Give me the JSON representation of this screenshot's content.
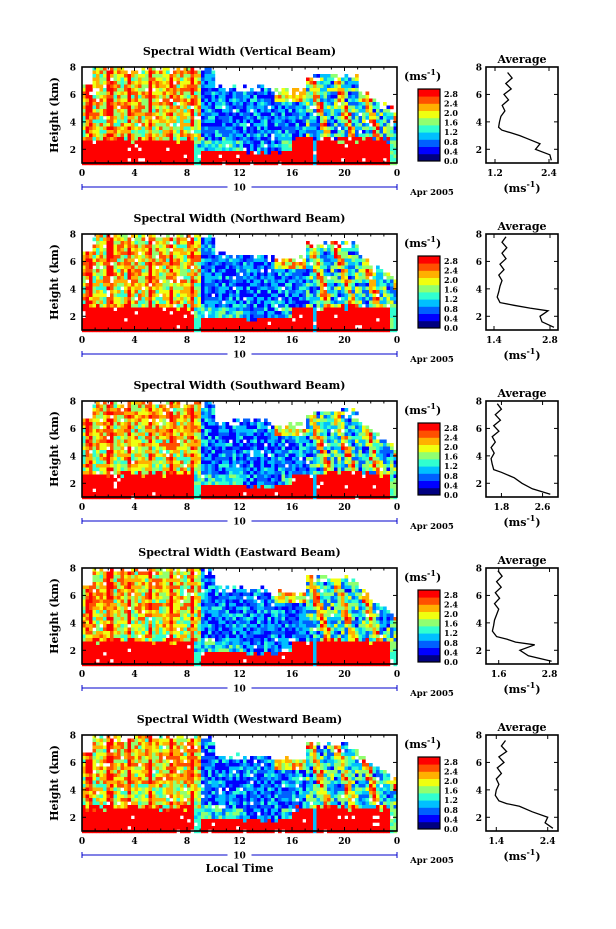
{
  "colors": {
    "colormap": [
      "#000080",
      "#0000ff",
      "#0060ff",
      "#00c0ff",
      "#30ffd0",
      "#90ff70",
      "#f0ff10",
      "#ffb000",
      "#ff5000",
      "#ff0000"
    ]
  },
  "chart_data": [
    {
      "type": "heatmap",
      "title": "Spectral Width (Vertical Beam)",
      "ylabel": "Height (km)",
      "x_ticks": [
        "0",
        "4",
        "8",
        "12",
        "16",
        "20",
        "0"
      ],
      "day_label": "10",
      "date_label": "Apr 2005",
      "xlim": [
        0,
        24
      ],
      "ylim": [
        1,
        8
      ],
      "y_ticks": [
        "2",
        "4",
        "6",
        "8"
      ],
      "colorbar": {
        "unit": "(ms-1)",
        "unit_base": "(ms",
        "unit_exp": "-1",
        "unit_close": ")",
        "ticks": [
          "0.0",
          "0.4",
          "0.8",
          "1.2",
          "1.6",
          "2.0",
          "2.4",
          "2.8"
        ],
        "range": [
          0,
          3.0
        ]
      },
      "profile": {
        "title": "Average",
        "xlabel_base": "(ms",
        "xlabel_exp": "-1",
        "xlabel_close": ")",
        "x_ticks": [
          "1.2",
          "2.4"
        ],
        "xlim": [
          1.0,
          2.6
        ],
        "ylim": [
          1,
          8
        ],
        "y_ticks": [
          "2",
          "4",
          "6",
          "8"
        ],
        "height": [
          1.2,
          1.6,
          2.0,
          2.4,
          2.8,
          3.0,
          3.2,
          3.4,
          3.6,
          4.0,
          4.4,
          4.8,
          5.2,
          5.6,
          6.0,
          6.4,
          6.8,
          7.2,
          7.6
        ],
        "width": [
          2.45,
          2.42,
          2.1,
          2.2,
          1.9,
          1.75,
          1.55,
          1.35,
          1.28,
          1.3,
          1.33,
          1.42,
          1.36,
          1.5,
          1.4,
          1.56,
          1.44,
          1.58,
          1.48
        ]
      }
    },
    {
      "type": "heatmap",
      "title": "Spectral Width (Northward Beam)",
      "ylabel": "Height (km)",
      "x_ticks": [
        "0",
        "4",
        "8",
        "12",
        "16",
        "20",
        "0"
      ],
      "day_label": "10",
      "date_label": "Apr 2005",
      "xlim": [
        0,
        24
      ],
      "ylim": [
        1,
        8
      ],
      "y_ticks": [
        "2",
        "4",
        "6",
        "8"
      ],
      "colorbar": {
        "unit": "(ms-1)",
        "unit_base": "(ms",
        "unit_exp": "-1",
        "unit_close": ")",
        "ticks": [
          "0.0",
          "0.4",
          "0.8",
          "1.2",
          "1.6",
          "2.0",
          "2.4",
          "2.8"
        ],
        "range": [
          0,
          3.0
        ]
      },
      "profile": {
        "title": "Average",
        "xlabel_base": "(ms",
        "xlabel_exp": "-1",
        "xlabel_close": ")",
        "x_ticks": [
          "1.4",
          "2.8"
        ],
        "xlim": [
          1.2,
          3.0
        ],
        "ylim": [
          1,
          8
        ],
        "y_ticks": [
          "2",
          "4",
          "6",
          "8"
        ],
        "height": [
          1.2,
          1.6,
          2.0,
          2.4,
          2.6,
          2.8,
          3.0,
          3.4,
          3.8,
          4.2,
          4.6,
          5.0,
          5.4,
          5.8,
          6.2,
          6.6,
          7.0,
          7.4,
          7.8
        ],
        "width": [
          2.9,
          2.6,
          2.55,
          2.75,
          2.3,
          1.9,
          1.55,
          1.48,
          1.52,
          1.55,
          1.6,
          1.52,
          1.65,
          1.55,
          1.7,
          1.6,
          1.72,
          1.6,
          1.7
        ]
      }
    },
    {
      "type": "heatmap",
      "title": "Spectral Width (Southward Beam)",
      "ylabel": "Height (km)",
      "x_ticks": [
        "0",
        "4",
        "8",
        "12",
        "16",
        "20",
        "0"
      ],
      "day_label": "10",
      "date_label": "Apr 2005",
      "xlim": [
        0,
        24
      ],
      "ylim": [
        1,
        8
      ],
      "y_ticks": [
        "2",
        "4",
        "6",
        "8"
      ],
      "colorbar": {
        "unit": "(ms-1)",
        "unit_base": "(ms",
        "unit_exp": "-1",
        "unit_close": ")",
        "ticks": [
          "0.0",
          "0.4",
          "0.8",
          "1.2",
          "1.6",
          "2.0",
          "2.4",
          "2.8"
        ],
        "range": [
          0,
          3.0
        ]
      },
      "profile": {
        "title": "Average",
        "xlabel_base": "(ms",
        "xlabel_exp": "-1",
        "xlabel_close": ")",
        "x_ticks": [
          "1.8",
          "2.6"
        ],
        "xlim": [
          1.5,
          2.9
        ],
        "ylim": [
          1,
          8
        ],
        "y_ticks": [
          "2",
          "4",
          "6",
          "8"
        ],
        "height": [
          1.2,
          1.6,
          2.0,
          2.4,
          2.8,
          3.0,
          3.4,
          3.8,
          4.2,
          4.6,
          5.0,
          5.4,
          5.8,
          6.2,
          6.6,
          7.0,
          7.4,
          7.8
        ],
        "width": [
          2.75,
          2.4,
          2.2,
          2.05,
          1.8,
          1.65,
          1.62,
          1.6,
          1.66,
          1.6,
          1.68,
          1.62,
          1.75,
          1.65,
          1.78,
          1.68,
          1.8,
          1.72
        ]
      }
    },
    {
      "type": "heatmap",
      "title": "Spectral Width (Eastward Beam)",
      "ylabel": "Height (km)",
      "x_ticks": [
        "0",
        "4",
        "8",
        "12",
        "16",
        "20",
        "0"
      ],
      "day_label": "10",
      "date_label": "Apr 2005",
      "xlim": [
        0,
        24
      ],
      "ylim": [
        1,
        8
      ],
      "y_ticks": [
        "2",
        "4",
        "6",
        "8"
      ],
      "colorbar": {
        "unit": "(ms-1)",
        "unit_base": "(ms",
        "unit_exp": "-1",
        "unit_close": ")",
        "ticks": [
          "0.0",
          "0.4",
          "0.8",
          "1.2",
          "1.6",
          "2.0",
          "2.4",
          "2.8"
        ],
        "range": [
          0,
          3.0
        ]
      },
      "profile": {
        "title": "Average",
        "xlabel_base": "(ms",
        "xlabel_exp": "-1",
        "xlabel_close": ")",
        "x_ticks": [
          "1.6",
          "2.8"
        ],
        "xlim": [
          1.3,
          3.0
        ],
        "ylim": [
          1,
          8
        ],
        "y_ticks": [
          "2",
          "4",
          "6",
          "8"
        ],
        "height": [
          1.2,
          1.6,
          2.0,
          2.4,
          2.6,
          2.8,
          3.0,
          3.4,
          3.8,
          4.2,
          4.6,
          5.0,
          5.4,
          5.8,
          6.2,
          6.6,
          7.0,
          7.4,
          7.8
        ],
        "width": [
          2.85,
          2.3,
          2.1,
          2.45,
          2.0,
          1.8,
          1.55,
          1.45,
          1.48,
          1.5,
          1.55,
          1.6,
          1.5,
          1.62,
          1.52,
          1.66,
          1.55,
          1.68,
          1.58
        ]
      }
    },
    {
      "type": "heatmap",
      "title": "Spectral Width (Westward Beam)",
      "ylabel": "Height (km)",
      "x_ticks": [
        "0",
        "4",
        "8",
        "12",
        "16",
        "20",
        "0"
      ],
      "day_label": "10",
      "date_label": "Apr 2005",
      "xaxis_label": "Local Time",
      "xlim": [
        0,
        24
      ],
      "ylim": [
        1,
        8
      ],
      "y_ticks": [
        "2",
        "4",
        "6",
        "8"
      ],
      "colorbar": {
        "unit": "(ms-1)",
        "unit_base": "(ms",
        "unit_exp": "-1",
        "unit_close": ")",
        "ticks": [
          "0.0",
          "0.4",
          "0.8",
          "1.2",
          "1.6",
          "2.0",
          "2.4",
          "2.8"
        ],
        "range": [
          0,
          3.0
        ]
      },
      "profile": {
        "title": "Average",
        "xlabel_base": "(ms",
        "xlabel_exp": "-1",
        "xlabel_close": ")",
        "x_ticks": [
          "1.4",
          "2.4"
        ],
        "xlim": [
          1.2,
          2.6
        ],
        "ylim": [
          1,
          8
        ],
        "y_ticks": [
          "2",
          "4",
          "6",
          "8"
        ],
        "height": [
          1.2,
          1.6,
          2.0,
          2.4,
          2.8,
          3.0,
          3.2,
          3.6,
          4.0,
          4.4,
          4.8,
          5.2,
          5.6,
          6.0,
          6.4,
          6.8,
          7.2,
          7.6
        ],
        "width": [
          2.5,
          2.35,
          2.4,
          2.1,
          1.85,
          1.6,
          1.45,
          1.38,
          1.4,
          1.45,
          1.4,
          1.5,
          1.42,
          1.55,
          1.45,
          1.6,
          1.5,
          1.58
        ]
      }
    }
  ]
}
